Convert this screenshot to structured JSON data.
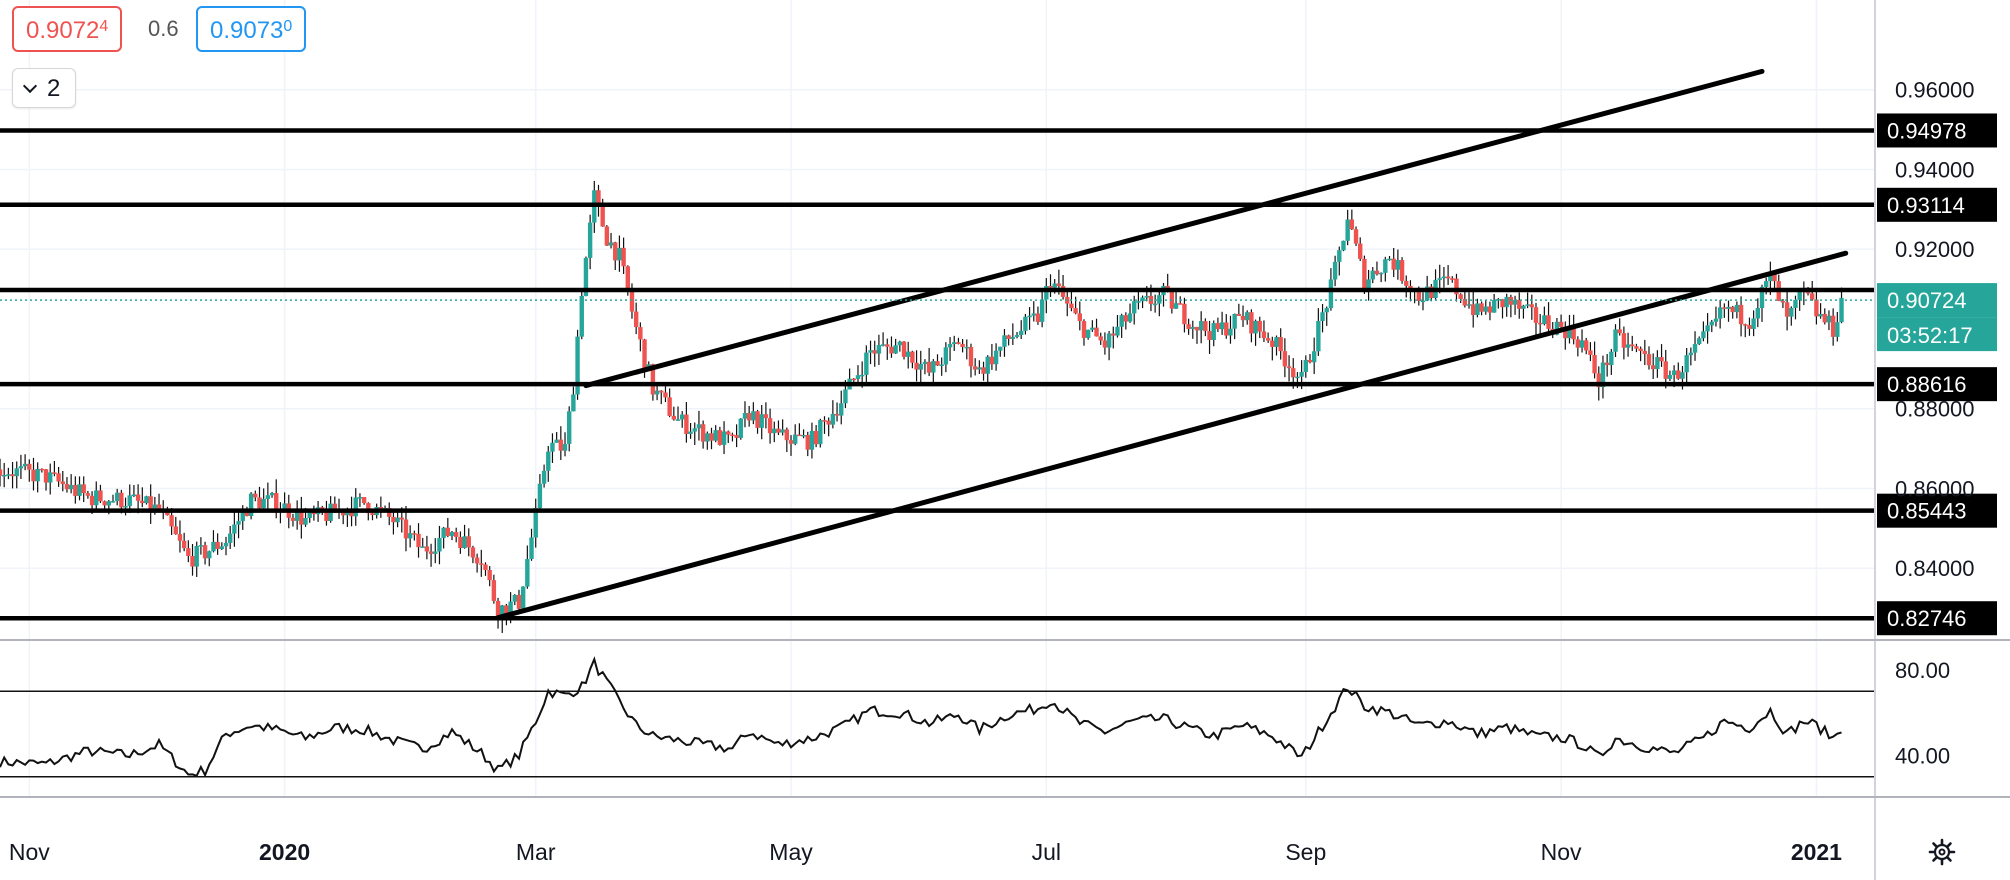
{
  "quotes": {
    "bid_main": "0.9072",
    "bid_sup": "4",
    "spread": "0.6",
    "ask_main": "0.9073",
    "ask_sup": "0"
  },
  "indicator_count": "2",
  "colors": {
    "up": "#26a69a",
    "down": "#ef5350",
    "line": "#000000",
    "grid": "#f0f3fa",
    "price_badge": "#26a69a"
  },
  "chart_data": {
    "type": "candlestick",
    "price_axis": {
      "range": [
        0.8225,
        0.9825
      ],
      "ticks": [
        "0.96000",
        "0.94000",
        "0.92000",
        "0.88000",
        "0.86000",
        "0.84000"
      ]
    },
    "time_axis": {
      "start": "2019-10-25",
      "end": "2021-01-15",
      "labels": [
        {
          "date": "2019-11-01",
          "text": "Nov"
        },
        {
          "date": "2020-01-01",
          "text": "2020"
        },
        {
          "date": "2020-03-01",
          "text": "Mar"
        },
        {
          "date": "2020-05-01",
          "text": "May"
        },
        {
          "date": "2020-07-01",
          "text": "Jul"
        },
        {
          "date": "2020-09-01",
          "text": "Sep"
        },
        {
          "date": "2020-11-01",
          "text": "Nov"
        },
        {
          "date": "2021-01-01",
          "text": "2021"
        }
      ]
    },
    "levels": [
      {
        "value": 0.94978,
        "label": "0.94978"
      },
      {
        "value": 0.93114,
        "label": "0.93114"
      },
      {
        "value": 0.90977,
        "label": ""
      },
      {
        "value": 0.88616,
        "label": "0.88616"
      },
      {
        "value": 0.85443,
        "label": "0.85443"
      },
      {
        "value": 0.82746,
        "label": "0.82746"
      }
    ],
    "current_price": {
      "value": 0.90724,
      "label": "0.90724",
      "countdown": "03:52:17"
    },
    "trendlines": [
      {
        "from": [
          "2020-03-13",
          0.8858
        ],
        "to": [
          "2020-12-19",
          0.9646
        ]
      },
      {
        "from": [
          "2020-02-21",
          0.8276
        ],
        "to": [
          "2021-01-08",
          0.919
        ]
      }
    ],
    "price_path": [
      [
        "2019-10-25",
        0.8648
      ],
      [
        "2019-11-05",
        0.863
      ],
      [
        "2019-11-15",
        0.8578
      ],
      [
        "2019-11-25",
        0.857
      ],
      [
        "2019-12-02",
        0.8545
      ],
      [
        "2019-12-09",
        0.8424
      ],
      [
        "2019-12-13",
        0.844
      ],
      [
        "2019-12-18",
        0.847
      ],
      [
        "2019-12-24",
        0.857
      ],
      [
        "2019-12-30",
        0.8565
      ],
      [
        "2020-01-06",
        0.852
      ],
      [
        "2020-01-13",
        0.854
      ],
      [
        "2020-01-20",
        0.8565
      ],
      [
        "2020-01-27",
        0.852
      ],
      [
        "2020-02-03",
        0.8445
      ],
      [
        "2020-02-10",
        0.8495
      ],
      [
        "2020-02-17",
        0.8425
      ],
      [
        "2020-02-21",
        0.8295
      ],
      [
        "2020-02-26",
        0.8315
      ],
      [
        "2020-03-01",
        0.853
      ],
      [
        "2020-03-04",
        0.871
      ],
      [
        "2020-03-08",
        0.87
      ],
      [
        "2020-03-10",
        0.886
      ],
      [
        "2020-03-12",
        0.91
      ],
      [
        "2020-03-15",
        0.933
      ],
      [
        "2020-03-18",
        0.923
      ],
      [
        "2020-03-21",
        0.918
      ],
      [
        "2020-03-25",
        0.9
      ],
      [
        "2020-03-29",
        0.885
      ],
      [
        "2020-04-04",
        0.877
      ],
      [
        "2020-04-10",
        0.874
      ],
      [
        "2020-04-17",
        0.8715
      ],
      [
        "2020-04-21",
        0.879
      ],
      [
        "2020-04-28",
        0.873
      ],
      [
        "2020-05-06",
        0.872
      ],
      [
        "2020-05-13",
        0.882
      ],
      [
        "2020-05-20",
        0.8945
      ],
      [
        "2020-05-27",
        0.896
      ],
      [
        "2020-06-03",
        0.889
      ],
      [
        "2020-06-10",
        0.897
      ],
      [
        "2020-06-15",
        0.8895
      ],
      [
        "2020-06-22",
        0.8975
      ],
      [
        "2020-06-29",
        0.903
      ],
      [
        "2020-07-02",
        0.9125
      ],
      [
        "2020-07-09",
        0.901
      ],
      [
        "2020-07-15",
        0.896
      ],
      [
        "2020-07-22",
        0.905
      ],
      [
        "2020-07-29",
        0.9085
      ],
      [
        "2020-08-05",
        0.9015
      ],
      [
        "2020-08-10",
        0.899
      ],
      [
        "2020-08-17",
        0.903
      ],
      [
        "2020-08-24",
        0.897
      ],
      [
        "2020-08-31",
        0.887
      ],
      [
        "2020-09-07",
        0.91
      ],
      [
        "2020-09-11",
        0.928
      ],
      [
        "2020-09-15",
        0.912
      ],
      [
        "2020-09-21",
        0.918
      ],
      [
        "2020-09-28",
        0.908
      ],
      [
        "2020-10-05",
        0.912
      ],
      [
        "2020-10-12",
        0.904
      ],
      [
        "2020-10-19",
        0.907
      ],
      [
        "2020-10-26",
        0.9025
      ],
      [
        "2020-11-02",
        0.9
      ],
      [
        "2020-11-06",
        0.8965
      ],
      [
        "2020-11-10",
        0.887
      ],
      [
        "2020-11-14",
        0.8975
      ],
      [
        "2020-11-21",
        0.893
      ],
      [
        "2020-11-28",
        0.888
      ],
      [
        "2020-12-05",
        0.897
      ],
      [
        "2020-12-10",
        0.905
      ],
      [
        "2020-12-16",
        0.9025
      ],
      [
        "2020-12-21",
        0.913
      ],
      [
        "2020-12-25",
        0.902
      ],
      [
        "2020-12-29",
        0.909
      ],
      [
        "2021-01-01",
        0.904
      ],
      [
        "2021-01-05",
        0.9
      ],
      [
        "2021-01-07",
        0.9072
      ]
    ],
    "oscillator": {
      "range": [
        21,
        93
      ],
      "ticks": [
        "80.00",
        "40.00"
      ],
      "bands": [
        70,
        30
      ],
      "path": [
        [
          "2019-10-25",
          37
        ],
        [
          "2019-11-05",
          36
        ],
        [
          "2019-11-15",
          42
        ],
        [
          "2019-11-25",
          40
        ],
        [
          "2019-12-02",
          45
        ],
        [
          "2019-12-09",
          31
        ],
        [
          "2019-12-13",
          33
        ],
        [
          "2019-12-18",
          50
        ],
        [
          "2019-12-24",
          54
        ],
        [
          "2019-12-30",
          52
        ],
        [
          "2020-01-06",
          48
        ],
        [
          "2020-01-13",
          53
        ],
        [
          "2020-01-20",
          52
        ],
        [
          "2020-01-27",
          47
        ],
        [
          "2020-02-03",
          43
        ],
        [
          "2020-02-10",
          51
        ],
        [
          "2020-02-17",
          41
        ],
        [
          "2020-02-21",
          33
        ],
        [
          "2020-02-26",
          40
        ],
        [
          "2020-03-01",
          56
        ],
        [
          "2020-03-04",
          70
        ],
        [
          "2020-03-08",
          68
        ],
        [
          "2020-03-12",
          72
        ],
        [
          "2020-03-15",
          83
        ],
        [
          "2020-03-18",
          74
        ],
        [
          "2020-03-21",
          65
        ],
        [
          "2020-03-25",
          54
        ],
        [
          "2020-03-29",
          49
        ],
        [
          "2020-04-04",
          47
        ],
        [
          "2020-04-10",
          45
        ],
        [
          "2020-04-17",
          43
        ],
        [
          "2020-04-21",
          51
        ],
        [
          "2020-04-28",
          45
        ],
        [
          "2020-05-06",
          48
        ],
        [
          "2020-05-13",
          53
        ],
        [
          "2020-05-20",
          61
        ],
        [
          "2020-05-27",
          60
        ],
        [
          "2020-06-03",
          55
        ],
        [
          "2020-06-10",
          59
        ],
        [
          "2020-06-15",
          52
        ],
        [
          "2020-06-22",
          59
        ],
        [
          "2020-06-29",
          62
        ],
        [
          "2020-07-02",
          66
        ],
        [
          "2020-07-09",
          55
        ],
        [
          "2020-07-15",
          51
        ],
        [
          "2020-07-22",
          56
        ],
        [
          "2020-07-29",
          57
        ],
        [
          "2020-08-05",
          52
        ],
        [
          "2020-08-10",
          49
        ],
        [
          "2020-08-17",
          54
        ],
        [
          "2020-08-24",
          49
        ],
        [
          "2020-08-31",
          39
        ],
        [
          "2020-09-07",
          60
        ],
        [
          "2020-09-11",
          72
        ],
        [
          "2020-09-15",
          63
        ],
        [
          "2020-09-21",
          60
        ],
        [
          "2020-09-28",
          54
        ],
        [
          "2020-10-05",
          56
        ],
        [
          "2020-10-12",
          50
        ],
        [
          "2020-10-19",
          53
        ],
        [
          "2020-10-26",
          49
        ],
        [
          "2020-11-02",
          48
        ],
        [
          "2020-11-06",
          45
        ],
        [
          "2020-11-10",
          39
        ],
        [
          "2020-11-14",
          48
        ],
        [
          "2020-11-21",
          44
        ],
        [
          "2020-11-28",
          41
        ],
        [
          "2020-12-05",
          48
        ],
        [
          "2020-12-10",
          56
        ],
        [
          "2020-12-16",
          53
        ],
        [
          "2020-12-21",
          61
        ],
        [
          "2020-12-25",
          50
        ],
        [
          "2020-12-29",
          56
        ],
        [
          "2021-01-01",
          54
        ],
        [
          "2021-01-05",
          48
        ],
        [
          "2021-01-07",
          53
        ]
      ]
    }
  }
}
